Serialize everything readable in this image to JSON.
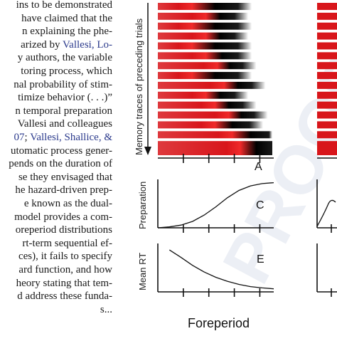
{
  "article_text": {
    "lines": [
      [
        {
          "t": "ins to be demonstrated"
        }
      ],
      [
        {
          "t": "have claimed that the"
        }
      ],
      [
        {
          "t": "n explaining the phe-"
        }
      ],
      [
        {
          "t": "arized by "
        },
        {
          "t": "Vallesi, Lo-",
          "link": true
        }
      ],
      [
        {
          "t": "y authors, the variable"
        }
      ],
      [
        {
          "t": "toring process, which"
        }
      ],
      [
        {
          "t": "nal probability of stim-"
        }
      ],
      [
        {
          "t": "timize behavior (. . .)”"
        }
      ],
      [
        {
          "t": "n temporal preparation"
        }
      ],
      [
        {
          "t": "Vallesi and colleagues"
        }
      ],
      [
        {
          "t": "07",
          "link": true
        },
        {
          "t": "; "
        },
        {
          "t": "Vallesi, Shallice, &",
          "link": true
        }
      ],
      [
        {
          "t": "utomatic process gener-"
        }
      ],
      [
        {
          "t": "pends on the duration of"
        }
      ],
      [
        {
          "t": "se they envisaged that"
        }
      ],
      [
        {
          "t": "he hazard-driven prep-"
        }
      ],
      [
        {
          "t": "e known as the dual-"
        }
      ],
      [
        {
          "t": "model provides a com-"
        }
      ],
      [
        {
          "t": "oreperiod distributions"
        }
      ],
      [
        {
          "t": "rt-term sequential ef-"
        }
      ],
      [
        {
          "t": "ces), it fails to specify"
        }
      ],
      [
        {
          "t": "ard function, and how"
        }
      ],
      [
        {
          "t": "heory stating that tem-"
        }
      ],
      [
        {
          "t": "d address these funda-"
        }
      ],
      [
        {
          "t": "s..."
        }
      ]
    ]
  },
  "figure": {
    "panel_a": {
      "ylabel": "Memory traces of preceding trials",
      "letter": "A",
      "colors": {
        "red": "#d8161b",
        "black": "#000000",
        "white": "#ffffff"
      },
      "traces": [
        {
          "peak": 0.3,
          "decay": 0.4
        },
        {
          "peak": 0.42,
          "decay": 0.25
        },
        {
          "peak": 0.3,
          "decay": 0.4
        },
        {
          "peak": 0.42,
          "decay": 0.25
        },
        {
          "peak": 0.3,
          "decay": 0.4
        },
        {
          "peak": 0.42,
          "decay": 0.28
        },
        {
          "peak": 0.52,
          "decay": 0.22
        },
        {
          "peak": 0.3,
          "decay": 0.4
        },
        {
          "peak": 0.58,
          "decay": 0.24
        },
        {
          "peak": 0.42,
          "decay": 0.25
        },
        {
          "peak": 0.5,
          "decay": 0.24
        },
        {
          "peak": 0.62,
          "decay": 0.22
        },
        {
          "peak": 0.5,
          "decay": 0.3
        },
        {
          "peak": 0.65,
          "decay": 0.32
        },
        {
          "peak": 0.72,
          "decay": 0.28
        }
      ]
    },
    "panel_c": {
      "ylabel": "Preparation",
      "letter": "C",
      "curve": [
        [
          0,
          0.0
        ],
        [
          0.1,
          0.02
        ],
        [
          0.2,
          0.06
        ],
        [
          0.3,
          0.14
        ],
        [
          0.4,
          0.28
        ],
        [
          0.5,
          0.46
        ],
        [
          0.6,
          0.66
        ],
        [
          0.7,
          0.82
        ],
        [
          0.8,
          0.92
        ],
        [
          0.9,
          0.97
        ],
        [
          1.0,
          0.99
        ]
      ]
    },
    "panel_e": {
      "ylabel": "Mean RT",
      "letter": "E",
      "curve": [
        [
          0.1,
          0.95
        ],
        [
          0.2,
          0.78
        ],
        [
          0.3,
          0.6
        ],
        [
          0.4,
          0.45
        ],
        [
          0.5,
          0.33
        ],
        [
          0.6,
          0.24
        ],
        [
          0.7,
          0.17
        ],
        [
          0.8,
          0.12
        ],
        [
          0.9,
          0.09
        ],
        [
          1.0,
          0.07
        ]
      ]
    },
    "xlabel": "Foreperiod",
    "watermark": "PROOFS"
  }
}
